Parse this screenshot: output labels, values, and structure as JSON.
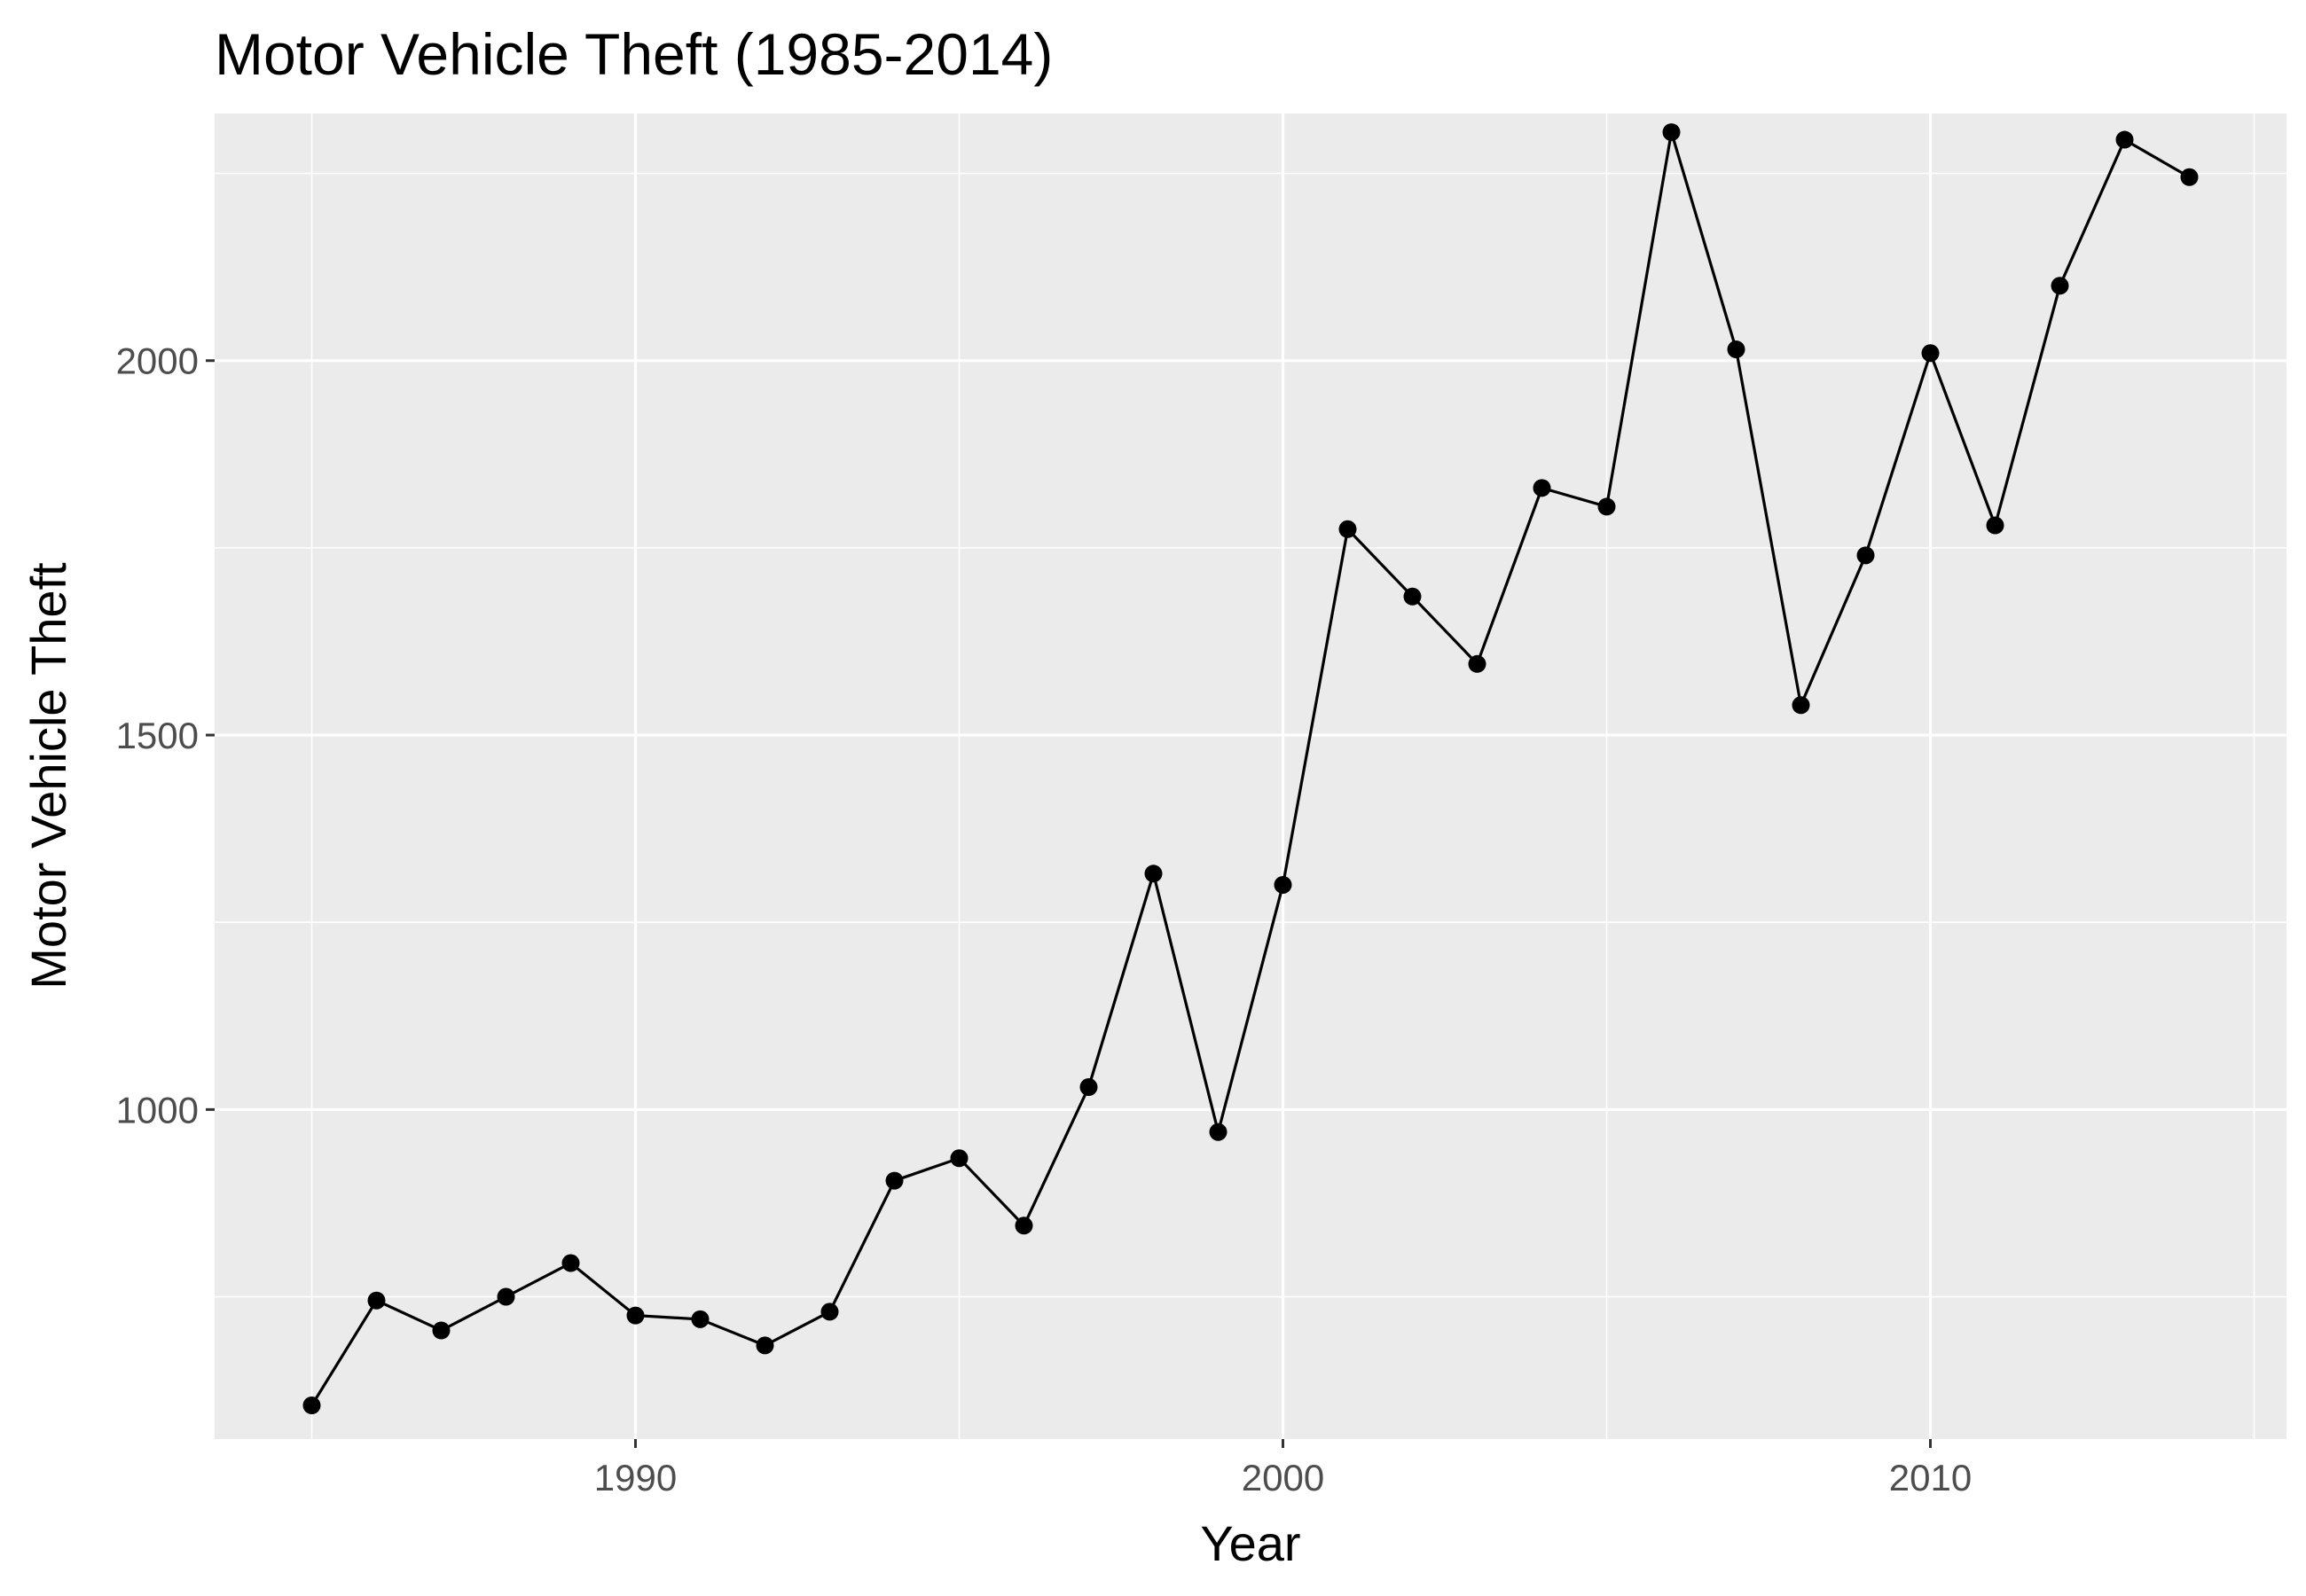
{
  "chart_data": {
    "type": "line",
    "title": "Motor Vehicle Theft (1985-2014)",
    "xlabel": "Year",
    "ylabel": "Motor Vehicle Theft",
    "xlim": [
      1983.5,
      2015.5
    ],
    "ylim": [
      560,
      2330
    ],
    "x_ticks": [
      1990,
      2000,
      2010
    ],
    "x_tick_labels": [
      "1990",
      "2000",
      "2010"
    ],
    "y_ticks": [
      1000,
      1500,
      2000
    ],
    "y_tick_labels": [
      "1000",
      "1500",
      "2000"
    ],
    "grid": true,
    "legend": "none",
    "colors": {
      "panel": "#ebebeb",
      "grid": "#ffffff",
      "line": "#000000",
      "tick_text": "#4d4d4d",
      "tick_mark": "#333333"
    },
    "series": [
      {
        "x": [
          1985,
          1986,
          1987,
          1988,
          1989,
          1990,
          1991,
          1992,
          1993,
          1994,
          1995,
          1996,
          1997,
          1998,
          1999,
          2000,
          2001,
          2002,
          2003,
          2004,
          2005,
          2006,
          2007,
          2008,
          2009,
          2010,
          2011,
          2012,
          2013,
          2014
        ],
        "values": [
          605,
          745,
          705,
          750,
          795,
          725,
          720,
          685,
          730,
          905,
          935,
          845,
          1030,
          1315,
          970,
          1300,
          1775,
          1685,
          1595,
          1830,
          1805,
          2305,
          2015,
          1540,
          1740,
          2010,
          1780,
          2100,
          2295,
          2245
        ]
      }
    ]
  }
}
